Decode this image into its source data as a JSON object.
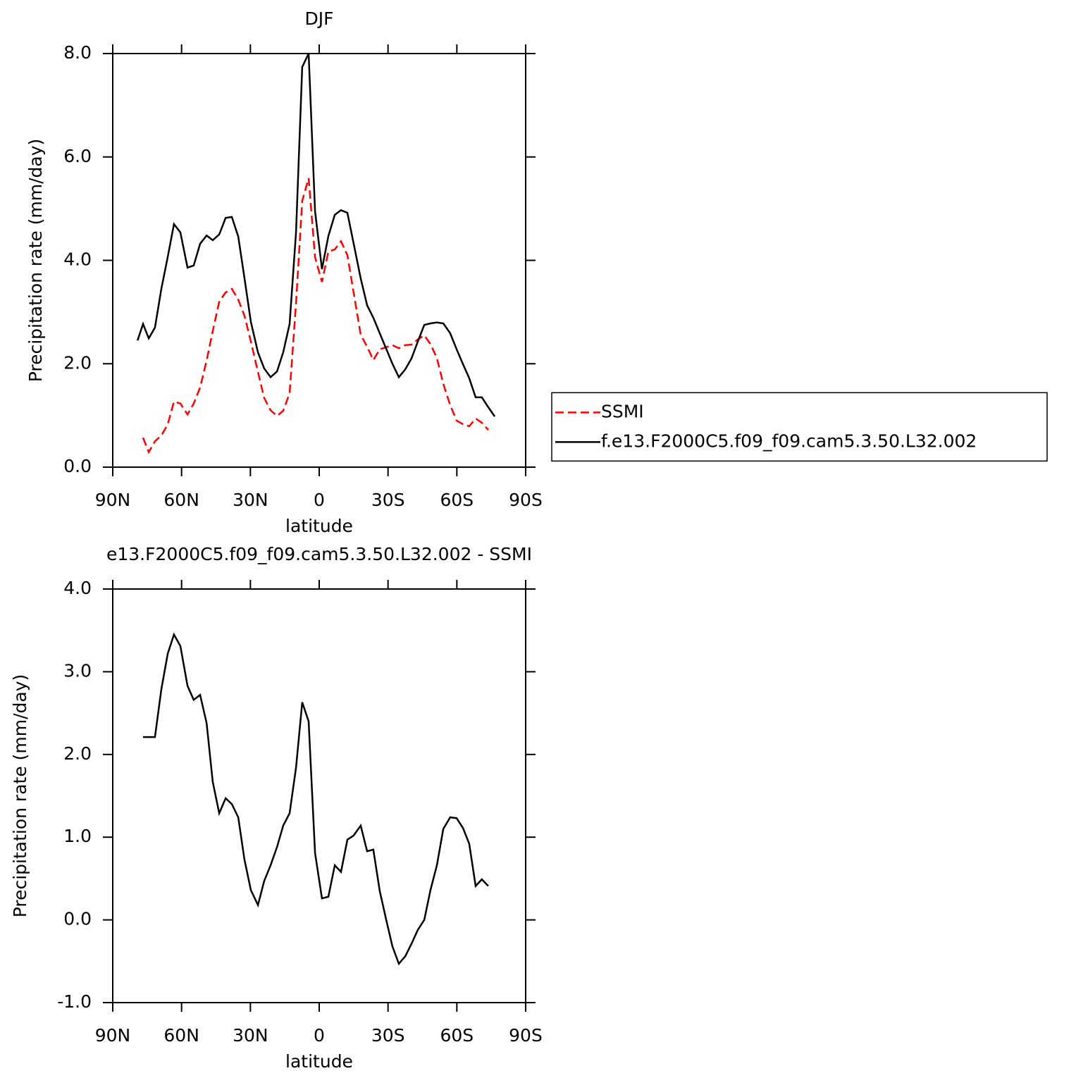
{
  "chart_data": [
    {
      "type": "line",
      "title": "DJF",
      "x_label": "latitude",
      "y_label": "Precipitation rate (mm/day)",
      "x": [
        79.2,
        76.8,
        74.3,
        71.6,
        68.8,
        66.0,
        63.3,
        60.5,
        57.4,
        54.7,
        51.9,
        49.1,
        46.4,
        43.6,
        40.8,
        38.1,
        35.3,
        32.6,
        29.8,
        26.7,
        24.0,
        21.2,
        18.4,
        15.7,
        12.9,
        10.1,
        7.4,
        4.6,
        1.8,
        -1.2,
        -4.0,
        -6.8,
        -9.5,
        -12.3,
        -15.0,
        -18.1,
        -20.9,
        -23.6,
        -26.4,
        -29.2,
        -31.9,
        -34.7,
        -37.5,
        -40.2,
        -43.0,
        -45.8,
        -48.5,
        -51.3,
        -54.1,
        -57.1,
        -59.9,
        -62.7,
        -65.4,
        -68.2,
        -70.9,
        -73.7,
        -76.5
      ],
      "series": [
        {
          "name": "SSMI",
          "color": "#ff0000",
          "dash": true,
          "values": [
            null,
            0.57,
            0.29,
            0.5,
            0.61,
            0.83,
            1.27,
            1.23,
            1.02,
            1.23,
            1.54,
            2.06,
            2.63,
            3.2,
            3.38,
            3.45,
            3.24,
            2.93,
            2.43,
            1.84,
            1.34,
            1.1,
            0.99,
            1.09,
            1.43,
            3.17,
            5.15,
            5.59,
            4.06,
            3.58,
            4.17,
            4.21,
            4.37,
            4.1,
            3.38,
            2.56,
            2.33,
            2.07,
            2.28,
            2.32,
            2.36,
            2.3,
            2.36,
            2.37,
            2.47,
            2.55,
            2.38,
            2.11,
            1.61,
            1.2,
            0.9,
            0.83,
            0.79,
            0.94,
            0.86,
            0.72,
            null
          ]
        },
        {
          "name": "f.e13.F2000C5.f09_f09.cam5.3.50.L32.002",
          "color": "#000000",
          "dash": false,
          "values": [
            2.45,
            2.77,
            2.49,
            2.7,
            3.45,
            4.07,
            4.7,
            4.54,
            3.86,
            3.9,
            4.32,
            4.48,
            4.39,
            4.5,
            4.82,
            4.84,
            4.46,
            3.66,
            2.81,
            2.22,
            1.91,
            1.74,
            1.85,
            2.22,
            2.77,
            4.54,
            7.74,
            8.0,
            4.95,
            3.83,
            4.47,
            4.88,
            4.97,
            4.92,
            4.33,
            3.65,
            3.13,
            2.89,
            2.59,
            2.29,
            2.0,
            1.74,
            1.89,
            2.1,
            2.43,
            2.75,
            2.78,
            2.8,
            2.78,
            2.59,
            2.28,
            1.99,
            1.72,
            1.35,
            1.35,
            1.16,
            0.98
          ]
        }
      ],
      "xlim": [
        90,
        -90
      ],
      "xticks": [
        {
          "value": 90,
          "label": "90N"
        },
        {
          "value": 60,
          "label": "60N"
        },
        {
          "value": 30,
          "label": "30N"
        },
        0,
        {
          "value": -30,
          "label": "30S"
        },
        {
          "value": -60,
          "label": "60S"
        },
        {
          "value": -90,
          "label": "90S"
        }
      ],
      "ylim": [
        0,
        8
      ],
      "yticks": [
        {
          "value": 0,
          "label": "0.0"
        },
        {
          "value": 2,
          "label": "2.0"
        },
        {
          "value": 4,
          "label": "4.0"
        },
        {
          "value": 6,
          "label": "6.0"
        },
        {
          "value": 8,
          "label": "8.0"
        }
      ],
      "legend": "right"
    },
    {
      "type": "line",
      "title": "e13.F2000C5.f09_f09.cam5.3.50.L32.002 - SSMI",
      "x_label": "latitude",
      "y_label": "Precipitation rate (mm/day)",
      "x": [
        76.8,
        74.3,
        71.6,
        68.8,
        66.0,
        63.3,
        60.5,
        57.4,
        54.7,
        51.9,
        49.1,
        46.4,
        43.6,
        40.8,
        38.1,
        35.3,
        32.6,
        29.8,
        26.7,
        24.0,
        21.2,
        18.4,
        15.7,
        12.9,
        10.1,
        7.4,
        4.6,
        1.8,
        -1.2,
        -4.0,
        -6.8,
        -9.5,
        -12.3,
        -15.0,
        -18.1,
        -20.9,
        -23.6,
        -26.4,
        -29.2,
        -31.9,
        -34.7,
        -37.5,
        -40.2,
        -43.0,
        -45.8,
        -48.5,
        -51.3,
        -54.1,
        -57.1,
        -59.9,
        -62.7,
        -65.4,
        -68.2,
        -70.9,
        -73.7
      ],
      "series": [
        {
          "color": "#000000",
          "dash": false,
          "values": [
            2.21,
            2.21,
            2.21,
            2.79,
            3.22,
            3.45,
            3.31,
            2.83,
            2.66,
            2.72,
            2.38,
            1.67,
            1.29,
            1.47,
            1.4,
            1.24,
            0.73,
            0.36,
            0.18,
            0.47,
            0.66,
            0.88,
            1.14,
            1.29,
            1.84,
            2.63,
            2.4,
            0.81,
            0.26,
            0.28,
            0.66,
            0.58,
            0.97,
            1.02,
            1.14,
            0.83,
            0.85,
            0.35,
            0.0,
            -0.32,
            -0.53,
            -0.44,
            -0.29,
            -0.12,
            0.0,
            0.36,
            0.66,
            1.1,
            1.24,
            1.23,
            1.11,
            0.92,
            0.41,
            0.49,
            0.41
          ]
        }
      ],
      "xlim": [
        90,
        -90
      ],
      "xticks": [
        {
          "value": 90,
          "label": "90N"
        },
        {
          "value": 60,
          "label": "60N"
        },
        {
          "value": 30,
          "label": "30N"
        },
        0,
        {
          "value": -30,
          "label": "30S"
        },
        {
          "value": -60,
          "label": "60S"
        },
        {
          "value": -90,
          "label": "90S"
        }
      ],
      "ylim": [
        -1,
        4
      ],
      "yticks": [
        {
          "value": -1,
          "label": "-1.0"
        },
        {
          "value": 0,
          "label": "0.0"
        },
        {
          "value": 1,
          "label": "1.0"
        },
        {
          "value": 2,
          "label": "2.0"
        },
        {
          "value": 3,
          "label": "3.0"
        },
        {
          "value": 4,
          "label": "4.0"
        }
      ]
    }
  ]
}
